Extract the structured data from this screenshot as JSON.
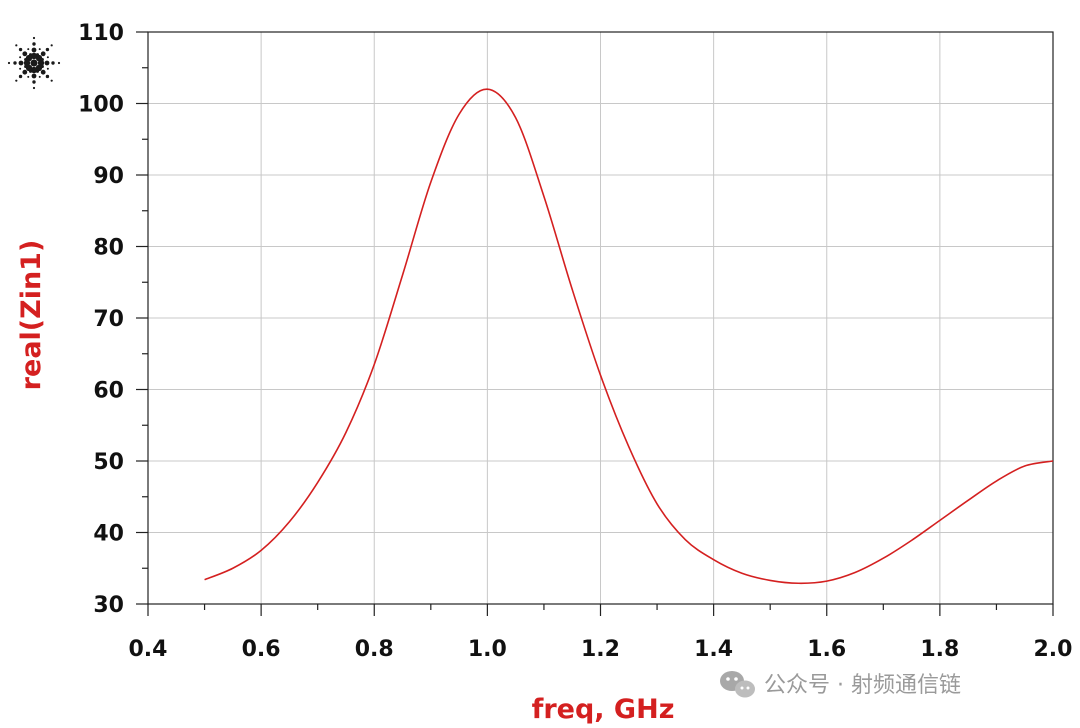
{
  "chart_data": {
    "type": "line",
    "xlabel": "freq, GHz",
    "ylabel": "real(Zin1)",
    "xlim": [
      0.4,
      2.0
    ],
    "ylim": [
      30,
      110
    ],
    "x_ticks": [
      0.4,
      0.6,
      0.8,
      1.0,
      1.2,
      1.4,
      1.6,
      1.8,
      2.0
    ],
    "x_tick_labels": [
      "0.4",
      "0.6",
      "0.8",
      "1.0",
      "1.2",
      "1.4",
      "1.6",
      "1.8",
      "2.0"
    ],
    "y_ticks": [
      30,
      40,
      50,
      60,
      70,
      80,
      90,
      100,
      110
    ],
    "y_tick_labels": [
      "30",
      "40",
      "50",
      "60",
      "70",
      "80",
      "90",
      "100",
      "110"
    ],
    "grid": true,
    "series": [
      {
        "color": "#d42020",
        "x": [
          0.5,
          0.55,
          0.6,
          0.65,
          0.7,
          0.75,
          0.8,
          0.85,
          0.9,
          0.95,
          1.0,
          1.05,
          1.1,
          1.15,
          1.2,
          1.25,
          1.3,
          1.35,
          1.4,
          1.45,
          1.5,
          1.55,
          1.6,
          1.65,
          1.7,
          1.75,
          1.8,
          1.85,
          1.9,
          1.95,
          2.0
        ],
        "y": [
          33.4,
          35.0,
          37.5,
          41.5,
          47.0,
          54.0,
          63.5,
          76.0,
          89.0,
          98.5,
          102.0,
          98.0,
          87.0,
          74.0,
          62.0,
          52.0,
          44.0,
          39.0,
          36.2,
          34.3,
          33.3,
          32.9,
          33.2,
          34.4,
          36.4,
          38.9,
          41.7,
          44.5,
          47.2,
          49.3,
          50.0
        ]
      }
    ]
  },
  "watermark": {
    "text": "公众号 · 射频通信链"
  },
  "logo": {
    "icon": "starburst-logo-icon"
  }
}
